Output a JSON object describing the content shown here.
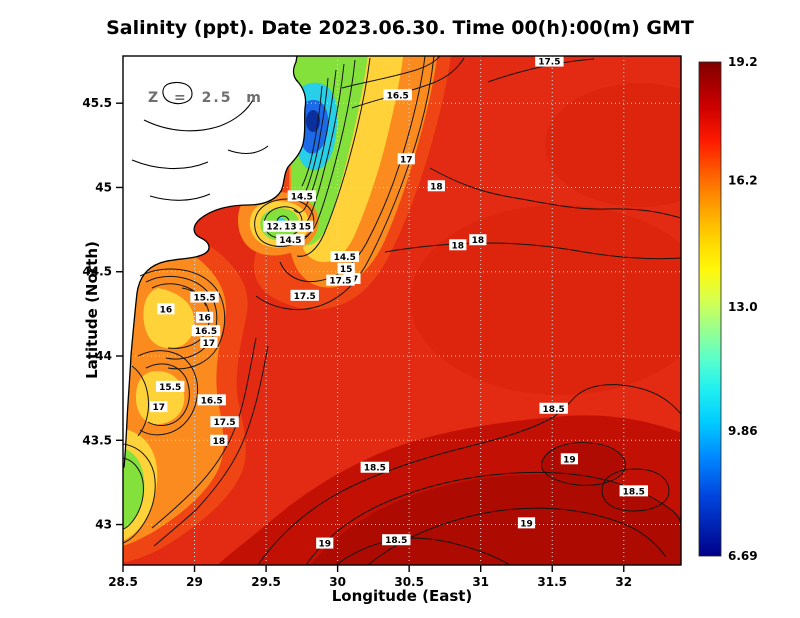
{
  "chart_data": {
    "type": "heatmap",
    "variant": "filled-contour-map",
    "title": "Salinity (ppt). Date 2023.06.30. Time 00(h):00(m) GMT",
    "annotation": "Z = 2.5 m",
    "xlabel": "Longitude (East)",
    "ylabel": "Latitude (North)",
    "xlim": [
      28.5,
      32.4
    ],
    "ylim": [
      42.76,
      45.78
    ],
    "x_ticks": [
      {
        "value": 28.5,
        "label": "28.5"
      },
      {
        "value": 29,
        "label": "29"
      },
      {
        "value": 29.5,
        "label": "29.5"
      },
      {
        "value": 30,
        "label": "30"
      },
      {
        "value": 30.5,
        "label": "30.5"
      },
      {
        "value": 31,
        "label": "31"
      },
      {
        "value": 31.5,
        "label": "31.5"
      },
      {
        "value": 32,
        "label": "32"
      }
    ],
    "y_ticks": [
      {
        "value": 43,
        "label": "43"
      },
      {
        "value": 43.5,
        "label": "43.5"
      },
      {
        "value": 44,
        "label": "44"
      },
      {
        "value": 44.5,
        "label": "44.5"
      },
      {
        "value": 45,
        "label": "45"
      },
      {
        "value": 45.5,
        "label": "45.5"
      }
    ],
    "grid": {
      "style": "dotted",
      "color": "#dcdcdc"
    },
    "colorbar": {
      "min": 6.69,
      "max": 19.2,
      "colormap": "jet",
      "tick_values": [
        19.2,
        16.2,
        13.0,
        9.86,
        6.69
      ],
      "tick_labels": [
        "19.2",
        "16.2",
        "13.0",
        "9.86",
        "6.69"
      ]
    },
    "units": "ppt",
    "field_summary": "Open-sea salinity 17.5-19+ ppt (red, darkest red >19 in the south-east and south); fresher coastal plume water 14-17 ppt (orange/yellow) along the western coast; very fresh river-plume core 7-13 ppt (green/cyan/blue) just off the delta near 29.8E 45.1-45.5N; land shown white in the north-west.",
    "contour_labels": [
      {
        "v": "17.5",
        "lon": 31.48,
        "lat": 45.75
      },
      {
        "v": "16.5",
        "lon": 30.42,
        "lat": 45.55
      },
      {
        "v": "17",
        "lon": 30.48,
        "lat": 45.17
      },
      {
        "v": "18",
        "lon": 30.69,
        "lat": 45.01
      },
      {
        "v": "14.5",
        "lon": 29.75,
        "lat": 44.95
      },
      {
        "v": "12.5",
        "lon": 29.58,
        "lat": 44.77
      },
      {
        "v": "13",
        "lon": 29.67,
        "lat": 44.77
      },
      {
        "v": "15",
        "lon": 29.77,
        "lat": 44.77
      },
      {
        "v": "14.5",
        "lon": 29.67,
        "lat": 44.69
      },
      {
        "v": "14.5",
        "lon": 30.05,
        "lat": 44.59
      },
      {
        "v": "15",
        "lon": 30.06,
        "lat": 44.52
      },
      {
        "v": "17",
        "lon": 30.1,
        "lat": 44.46
      },
      {
        "v": "17.5",
        "lon": 30.02,
        "lat": 44.45
      },
      {
        "v": "18",
        "lon": 30.84,
        "lat": 44.66
      },
      {
        "v": "18",
        "lon": 30.98,
        "lat": 44.69
      },
      {
        "v": "17.5",
        "lon": 29.77,
        "lat": 44.36
      },
      {
        "v": "15.5",
        "lon": 29.07,
        "lat": 44.35
      },
      {
        "v": "16",
        "lon": 28.8,
        "lat": 44.28
      },
      {
        "v": "16",
        "lon": 29.07,
        "lat": 44.23
      },
      {
        "v": "16.5",
        "lon": 29.08,
        "lat": 44.15
      },
      {
        "v": "17",
        "lon": 29.1,
        "lat": 44.08
      },
      {
        "v": "15.5",
        "lon": 28.83,
        "lat": 43.82
      },
      {
        "v": "16.5",
        "lon": 29.12,
        "lat": 43.74
      },
      {
        "v": "17",
        "lon": 28.75,
        "lat": 43.7
      },
      {
        "v": "17.5",
        "lon": 29.21,
        "lat": 43.61
      },
      {
        "v": "18",
        "lon": 29.17,
        "lat": 43.5
      },
      {
        "v": "18.5",
        "lon": 31.51,
        "lat": 43.69
      },
      {
        "v": "19",
        "lon": 31.62,
        "lat": 43.39
      },
      {
        "v": "18.5",
        "lon": 32.07,
        "lat": 43.2
      },
      {
        "v": "18.5",
        "lon": 30.26,
        "lat": 43.34
      },
      {
        "v": "19",
        "lon": 31.32,
        "lat": 43.01
      },
      {
        "v": "18.5",
        "lon": 30.41,
        "lat": 42.91
      },
      {
        "v": "19",
        "lon": 29.91,
        "lat": 42.89
      }
    ],
    "colors": {
      "sea_base_red": "#e32a12",
      "dark_red_19": "#ad0a02",
      "orange_16": "#fb8b1e",
      "yellow_15": "#ffd23a",
      "green_13": "#84e03a",
      "cyan_10": "#27cfe8",
      "blue_8": "#1d6ae8",
      "dark_blue_7": "#0c2f9e",
      "land": "#ffffff",
      "coastline": "#000000"
    }
  }
}
